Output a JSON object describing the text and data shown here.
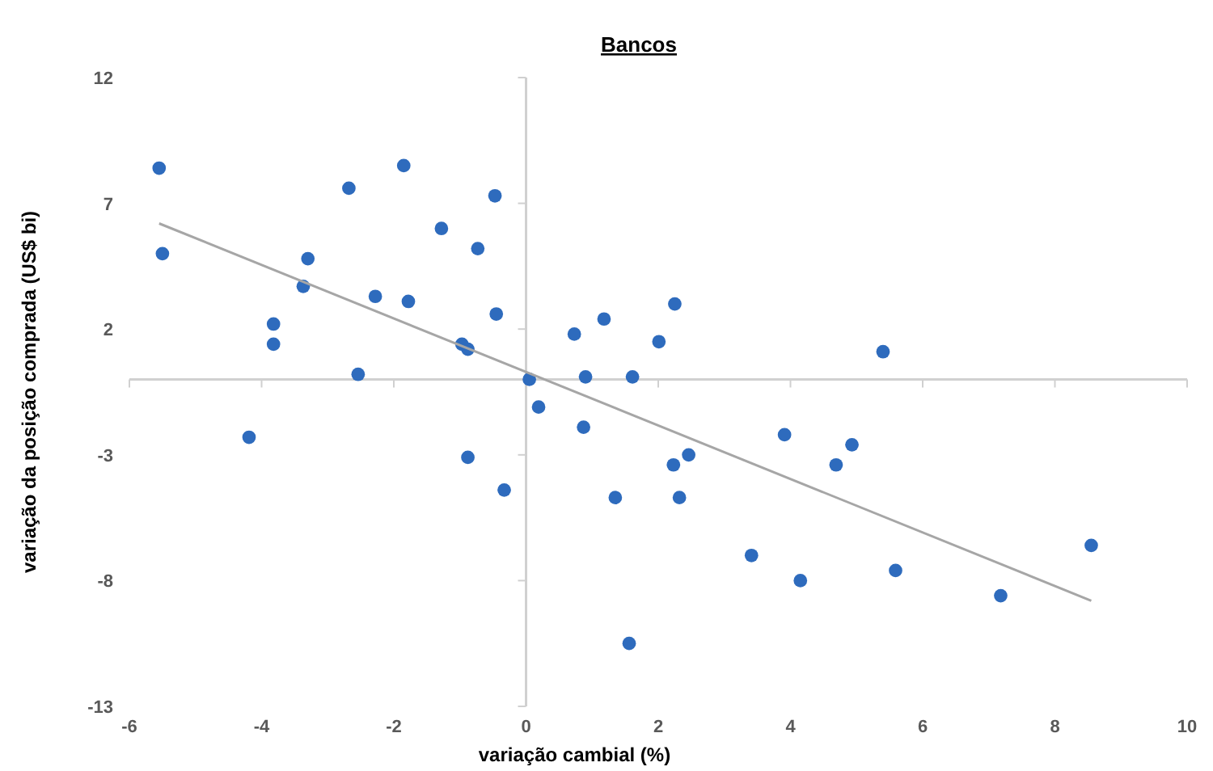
{
  "chart_data": {
    "type": "scatter",
    "title": "Bancos",
    "xlabel": "variação cambial (%)",
    "ylabel": "variação da posição comprada (US$ bi)",
    "xlim": [
      -6,
      10
    ],
    "xticks": [
      -6,
      -4,
      -2,
      0,
      2,
      4,
      6,
      8,
      10
    ],
    "ylim": [
      -13,
      12
    ],
    "yticks": [
      -13,
      -8,
      -3,
      2,
      7,
      12
    ],
    "series": [
      {
        "marker": "circle",
        "color": "#2e6bbd",
        "x": [
          -5.55,
          -5.5,
          -3.82,
          -3.82,
          -3.3,
          -3.37,
          -2.68,
          -2.54,
          -2.28,
          -1.85,
          -1.78,
          -1.28,
          -0.73,
          -0.47,
          -0.45,
          -0.88,
          -0.97,
          0.05,
          0.19,
          -4.19,
          -0.88,
          -0.33,
          0.73,
          1.18,
          2.01,
          2.25,
          5.4,
          0.9,
          1.61,
          0.87,
          1.35,
          2.23,
          2.32,
          2.46,
          1.56,
          3.41,
          3.91,
          4.15,
          4.69,
          4.93,
          5.59,
          7.18,
          8.55
        ],
        "values": [
          8.4,
          5.0,
          2.2,
          1.4,
          4.8,
          3.7,
          7.6,
          0.2,
          3.3,
          8.5,
          3.1,
          6.0,
          5.2,
          7.3,
          2.6,
          1.2,
          1.4,
          0,
          -1.1,
          -2.3,
          -3.1,
          -4.4,
          1.8,
          2.4,
          1.5,
          3.0,
          1.1,
          0.1,
          0.1,
          -1.9,
          -4.7,
          -3.4,
          -4.7,
          -3.0,
          -10.5,
          -7.0,
          -2.2,
          -8.0,
          -3.4,
          -2.6,
          -7.6,
          -8.6,
          -6.6
        ]
      },
      {
        "type": "line",
        "color": "#a6a6a6",
        "x": [
          -5.55,
          8.55
        ],
        "values": [
          6.2,
          -8.8
        ]
      }
    ]
  }
}
